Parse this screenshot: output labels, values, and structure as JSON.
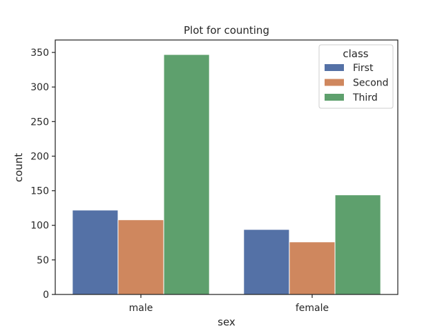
{
  "chart_data": {
    "type": "bar",
    "title": "Plot for counting",
    "xlabel": "sex",
    "ylabel": "count",
    "categories": [
      "male",
      "female"
    ],
    "series": [
      {
        "name": "First",
        "values": [
          122,
          94
        ],
        "color": "#5471a6"
      },
      {
        "name": "Second",
        "values": [
          108,
          76
        ],
        "color": "#cf875e"
      },
      {
        "name": "Third",
        "values": [
          347,
          144
        ],
        "color": "#5ea06d"
      }
    ],
    "ylim": [
      0,
      368
    ],
    "yticks": [
      0,
      50,
      100,
      150,
      200,
      250,
      300,
      350
    ],
    "legend": {
      "title": "class",
      "placement": "top-right"
    },
    "grid": false
  }
}
